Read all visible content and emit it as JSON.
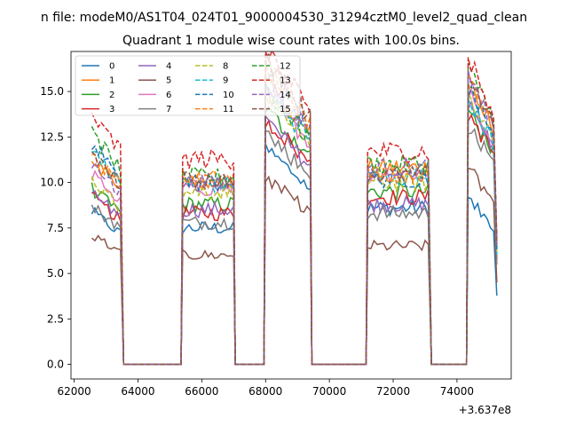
{
  "suptitle": "n file: modeM0/AS1T04_024T01_9000004530_31294cztM0_level2_quad_clean",
  "chart_data": {
    "type": "line",
    "title": "Quadrant 1 module wise count rates with 100.0s bins.",
    "xlabel": "",
    "ylabel": "",
    "x_offset_label": "+3.637e8",
    "xlim": [
      61900,
      75700
    ],
    "ylim": [
      -0.8,
      17.2
    ],
    "x_ticks": [
      62000,
      64000,
      66000,
      68000,
      70000,
      72000,
      74000
    ],
    "x_tick_labels": [
      "62000",
      "64000",
      "66000",
      "68000",
      "70000",
      "72000",
      "74000"
    ],
    "y_ticks": [
      0.0,
      2.5,
      5.0,
      7.5,
      10.0,
      12.5,
      15.0
    ],
    "y_tick_labels": [
      "0.0",
      "2.5",
      "5.0",
      "7.5",
      "10.0",
      "12.5",
      "15.0"
    ],
    "grid": false,
    "legend": {
      "placement": "upper-left",
      "columns": 4
    },
    "on_segments": [
      [
        62550,
        63450
      ],
      [
        65400,
        66950
      ],
      [
        68000,
        69350
      ],
      [
        71200,
        73100
      ],
      [
        74350,
        75250
      ]
    ],
    "bin_size": 100,
    "series": [
      {
        "name": "0",
        "color": "#1f77b4",
        "dash": false,
        "levels": [
          8.0,
          7.5,
          11.0,
          8.6,
          8.4
        ]
      },
      {
        "name": "1",
        "color": "#ff7f0e",
        "dash": false,
        "levels": [
          10.8,
          10.0,
          14.5,
          10.8,
          14.3
        ]
      },
      {
        "name": "2",
        "color": "#2ca02c",
        "dash": false,
        "levels": [
          9.2,
          8.8,
          13.0,
          9.5,
          13.0
        ]
      },
      {
        "name": "3",
        "color": "#d62728",
        "dash": false,
        "levels": [
          8.8,
          8.3,
          12.5,
          9.2,
          12.8
        ]
      },
      {
        "name": "4",
        "color": "#9467bd",
        "dash": false,
        "levels": [
          9.0,
          8.5,
          12.4,
          8.8,
          13.2
        ]
      },
      {
        "name": "5",
        "color": "#8c564b",
        "dash": false,
        "levels": [
          6.8,
          6.0,
          9.5,
          6.5,
          10.0
        ]
      },
      {
        "name": "6",
        "color": "#e377c2",
        "dash": false,
        "levels": [
          10.0,
          9.7,
          13.8,
          10.5,
          13.8
        ]
      },
      {
        "name": "7",
        "color": "#7f7f7f",
        "dash": false,
        "levels": [
          8.3,
          7.8,
          11.8,
          8.3,
          12.2
        ]
      },
      {
        "name": "8",
        "color": "#bcbd22",
        "dash": true,
        "levels": [
          9.6,
          9.5,
          13.5,
          10.0,
          13.8
        ]
      },
      {
        "name": "9",
        "color": "#17becf",
        "dash": true,
        "levels": [
          11.2,
          9.9,
          14.0,
          10.3,
          13.5
        ]
      },
      {
        "name": "10",
        "color": "#1f77b4",
        "dash": true,
        "levels": [
          11.5,
          10.0,
          14.8,
          10.2,
          14.0
        ]
      },
      {
        "name": "11",
        "color": "#ff7f0e",
        "dash": true,
        "levels": [
          11.0,
          10.2,
          15.2,
          10.5,
          14.8
        ]
      },
      {
        "name": "12",
        "color": "#2ca02c",
        "dash": true,
        "levels": [
          12.0,
          10.3,
          14.0,
          11.0,
          15.0
        ]
      },
      {
        "name": "13",
        "color": "#d62728",
        "dash": true,
        "levels": [
          13.0,
          11.3,
          16.0,
          11.7,
          15.5
        ]
      },
      {
        "name": "14",
        "color": "#9467bd",
        "dash": true,
        "levels": [
          10.5,
          10.0,
          14.5,
          10.8,
          14.6
        ]
      },
      {
        "name": "15",
        "color": "#8c564b",
        "dash": true,
        "levels": [
          11.0,
          10.1,
          15.5,
          10.4,
          14.7
        ]
      }
    ]
  }
}
